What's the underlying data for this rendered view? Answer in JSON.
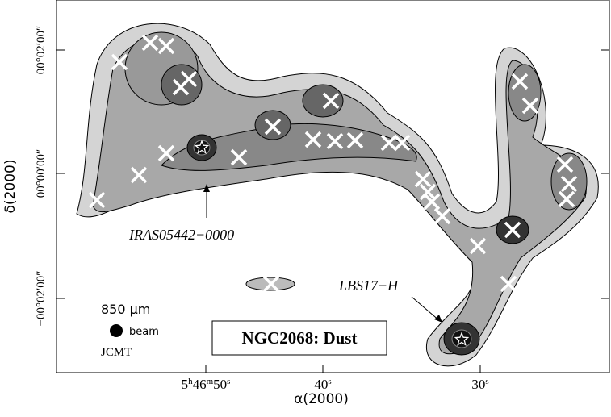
{
  "figure": {
    "x_axis_label": "α(2000)",
    "y_axis_label": "δ(2000)",
    "x_tick_labels": [
      [
        "5",
        "h",
        "46",
        "m",
        "50",
        "s"
      ],
      [
        "40",
        "s"
      ],
      [
        "30",
        "s"
      ]
    ],
    "y_tick_labels": [
      "00°02′00″",
      "00°00′00″",
      "−00°02′00″"
    ],
    "annotations": {
      "source_1": "IRAS05442−0000",
      "source_2": "LBS17−H",
      "wavelength": "850 μm",
      "beam": "beam",
      "telescope": "JCMT"
    },
    "title_box": "NGC2068: Dust"
  }
}
